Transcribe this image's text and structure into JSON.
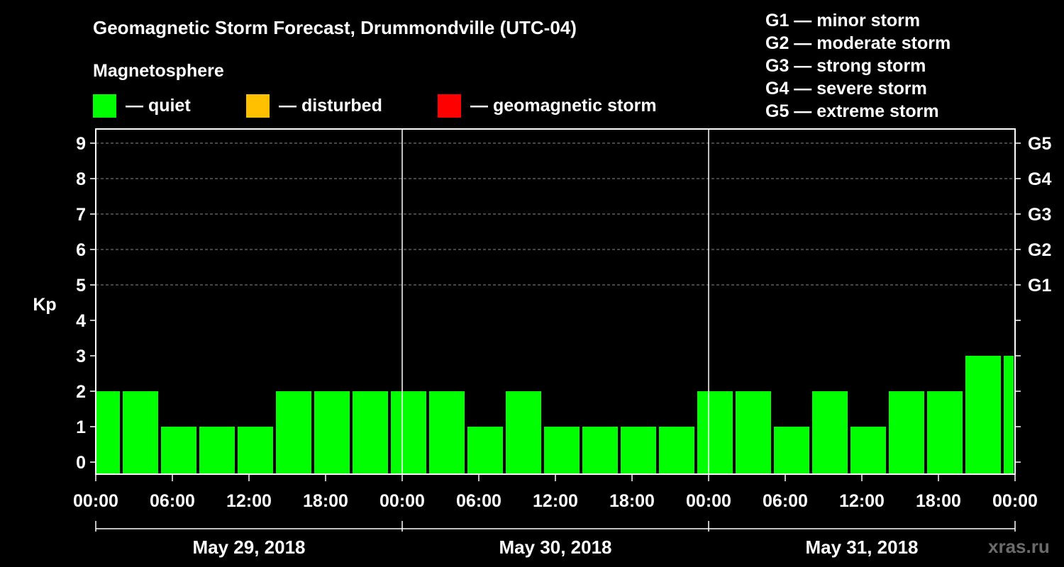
{
  "title": "Geomagnetic Storm Forecast, Drummondville (UTC-04)",
  "subtitle": "Magnetosphere",
  "legend": [
    {
      "label": "— quiet",
      "color": "#00ff00"
    },
    {
      "label": "— disturbed",
      "color": "#ffc000"
    },
    {
      "label": "— geomagnetic storm",
      "color": "#ff0000"
    }
  ],
  "storm_scale": [
    "G1 — minor storm",
    "G2 — moderate storm",
    "G3 — strong storm",
    "G4 — severe storm",
    "G5 — extreme storm"
  ],
  "watermark": "xras.ru",
  "chart_data": {
    "type": "bar",
    "ylabel": "Kp",
    "ylim": [
      0,
      9
    ],
    "y_ticks": [
      0,
      1,
      2,
      3,
      4,
      5,
      6,
      7,
      8,
      9
    ],
    "right_axis_labels": [
      {
        "kp": 5,
        "label": "G1"
      },
      {
        "kp": 6,
        "label": "G2"
      },
      {
        "kp": 7,
        "label": "G3"
      },
      {
        "kp": 8,
        "label": "G4"
      },
      {
        "kp": 9,
        "label": "G5"
      }
    ],
    "x_tick_labels": [
      "00:00",
      "06:00",
      "12:00",
      "18:00",
      "00:00",
      "06:00",
      "12:00",
      "18:00",
      "00:00",
      "06:00",
      "12:00",
      "18:00",
      "00:00"
    ],
    "days": [
      "May 29, 2018",
      "May 30, 2018",
      "May 31, 2018"
    ],
    "x_range_hours": [
      0,
      72
    ],
    "grid": "horizontal dashed at Kp 5-9",
    "bars": [
      {
        "start": 0,
        "end": 2,
        "kp": 2,
        "level": "quiet"
      },
      {
        "start": 2,
        "end": 5,
        "kp": 2,
        "level": "quiet"
      },
      {
        "start": 5,
        "end": 8,
        "kp": 1,
        "level": "quiet"
      },
      {
        "start": 8,
        "end": 11,
        "kp": 1,
        "level": "quiet"
      },
      {
        "start": 11,
        "end": 14,
        "kp": 1,
        "level": "quiet"
      },
      {
        "start": 14,
        "end": 17,
        "kp": 2,
        "level": "quiet"
      },
      {
        "start": 17,
        "end": 20,
        "kp": 2,
        "level": "quiet"
      },
      {
        "start": 20,
        "end": 23,
        "kp": 2,
        "level": "quiet"
      },
      {
        "start": 23,
        "end": 26,
        "kp": 2,
        "level": "quiet"
      },
      {
        "start": 26,
        "end": 29,
        "kp": 2,
        "level": "quiet"
      },
      {
        "start": 29,
        "end": 32,
        "kp": 1,
        "level": "quiet"
      },
      {
        "start": 32,
        "end": 35,
        "kp": 2,
        "level": "quiet"
      },
      {
        "start": 35,
        "end": 38,
        "kp": 1,
        "level": "quiet"
      },
      {
        "start": 38,
        "end": 41,
        "kp": 1,
        "level": "quiet"
      },
      {
        "start": 41,
        "end": 44,
        "kp": 1,
        "level": "quiet"
      },
      {
        "start": 44,
        "end": 47,
        "kp": 1,
        "level": "quiet"
      },
      {
        "start": 47,
        "end": 50,
        "kp": 2,
        "level": "quiet"
      },
      {
        "start": 50,
        "end": 53,
        "kp": 2,
        "level": "quiet"
      },
      {
        "start": 53,
        "end": 56,
        "kp": 1,
        "level": "quiet"
      },
      {
        "start": 56,
        "end": 59,
        "kp": 2,
        "level": "quiet"
      },
      {
        "start": 59,
        "end": 62,
        "kp": 1,
        "level": "quiet"
      },
      {
        "start": 62,
        "end": 65,
        "kp": 2,
        "level": "quiet"
      },
      {
        "start": 65,
        "end": 68,
        "kp": 2,
        "level": "quiet"
      },
      {
        "start": 68,
        "end": 71,
        "kp": 3,
        "level": "quiet"
      },
      {
        "start": 71,
        "end": 72,
        "kp": 3,
        "level": "quiet"
      }
    ]
  }
}
